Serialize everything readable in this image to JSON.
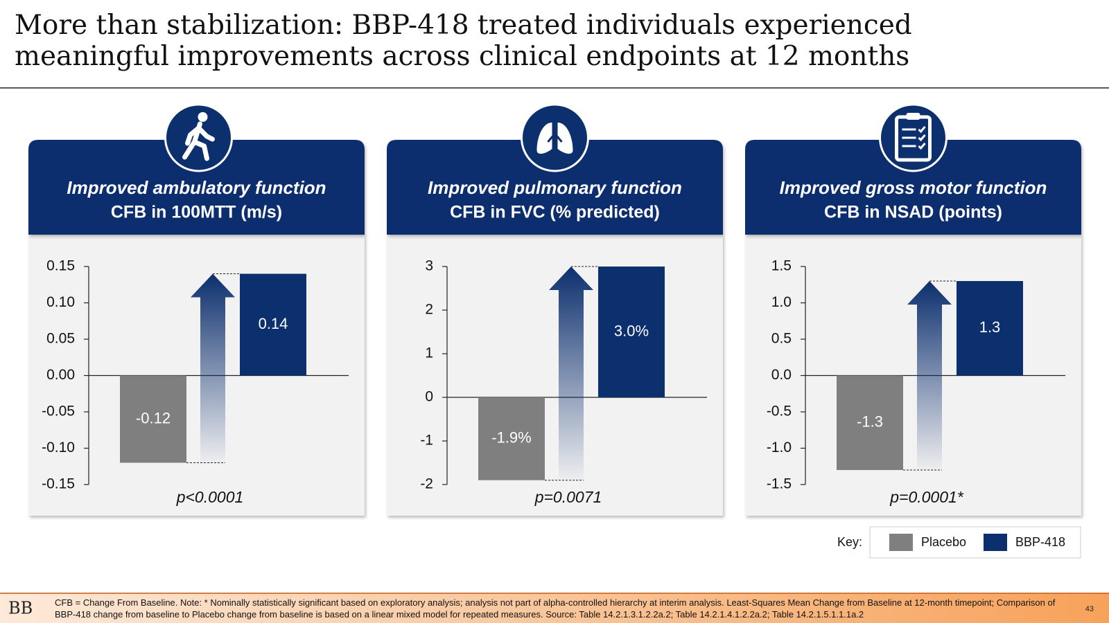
{
  "title": "More than stabilization: BBP-418 treated individuals experienced meaningful improvements across clinical endpoints at 12 months",
  "legend": {
    "label": "Key:",
    "entries": [
      {
        "name": "Placebo",
        "color": "#7f7f7f"
      },
      {
        "name": "BBP-418",
        "color": "#0c2f6e"
      }
    ]
  },
  "chart_data": [
    {
      "type": "bar",
      "title": "Improved ambulatory function",
      "subtitle": "CFB in 100MTT (m/s)",
      "values": [
        -0.12,
        0.14
      ],
      "ylim": [
        -0.15,
        0.15
      ],
      "yticks": [
        -0.15,
        {
          "value": -0.1,
          "label": "-0.10"
        },
        -0.05,
        {
          "value": 0,
          "label": "0.00"
        },
        0.05,
        {
          "value": 0.1,
          "label": "0.10"
        },
        0.15
      ],
      "annotation": "p<0.0001"
    },
    {
      "type": "bar",
      "title": "Improved pulmonary function",
      "subtitle": "CFB in FVC (% predicted)",
      "values": [
        -1.9,
        3.0
      ],
      "value_labels": [
        "-1.9%",
        "3.0%"
      ],
      "ylim": [
        -2,
        3
      ],
      "yticks": [
        -2,
        -1,
        0,
        1,
        2,
        3
      ],
      "annotation": "p=0.0071"
    },
    {
      "type": "bar",
      "title": "Improved gross motor function",
      "subtitle": "CFB in NSAD (points)",
      "values": [
        -1.3,
        1.3
      ],
      "ylim": [
        -1.5,
        1.5
      ],
      "yticks": [
        -1.5,
        {
          "value": -1,
          "label": "-1.0"
        },
        -0.5,
        {
          "value": 0,
          "label": "0.0"
        },
        0.5,
        {
          "value": 1,
          "label": "1.0"
        },
        1.5
      ],
      "annotation": "p=0.0001*"
    }
  ],
  "footer": {
    "logo": "BB",
    "note": "CFB = Change From Baseline. Note: * Nominally statistically significant based on exploratory analysis; analysis not part of alpha-controlled hierarchy at interim analysis. Least-Squares Mean Change from Baseline at 12-month timepoint; Comparison of BBP-418 change from baseline to Placebo change from baseline is based on a linear mixed model for repeated measures. Source: Table 14.2.1.3.1.2.2a.2; Table 14.2.1.4.1.2.2a.2; Table 14.2.1.5.1.1.1a.2",
    "page": "43"
  }
}
